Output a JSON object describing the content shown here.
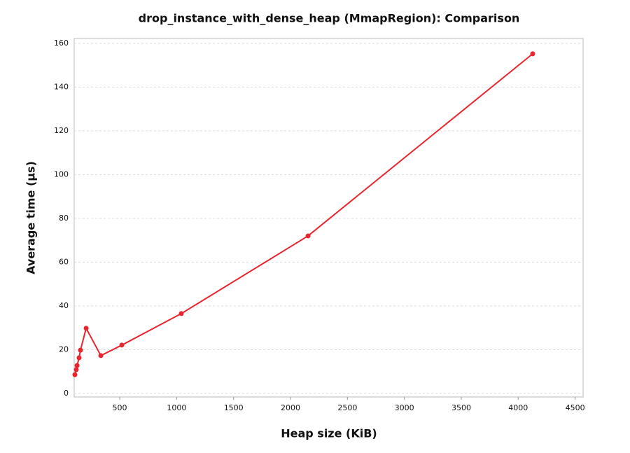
{
  "chart_data": {
    "type": "line",
    "title": "drop_instance_with_dense_heap (MmapRegion): Comparison",
    "x_label": "Heap size (KiB)",
    "y_label": "Average time (µs)",
    "x": [
      106,
      118,
      125,
      143,
      155,
      205,
      334,
      518,
      1041,
      2154,
      4127
    ],
    "series": [
      {
        "name": "MmapRegion",
        "color": "#e8262f",
        "values": [
          8.6,
          10.9,
          12.8,
          16.3,
          19.8,
          29.8,
          17.3,
          22.1,
          36.5,
          72,
          155.2
        ]
      }
    ],
    "xlim": [
      100,
      4570
    ],
    "ylim": [
      -1.6,
      162.2
    ],
    "xticks": [
      500,
      1000,
      1500,
      2000,
      2500,
      3000,
      3500,
      4000,
      4500
    ],
    "yticks": [
      0,
      20,
      40,
      60,
      80,
      100,
      120,
      140,
      160
    ],
    "grid": true
  }
}
